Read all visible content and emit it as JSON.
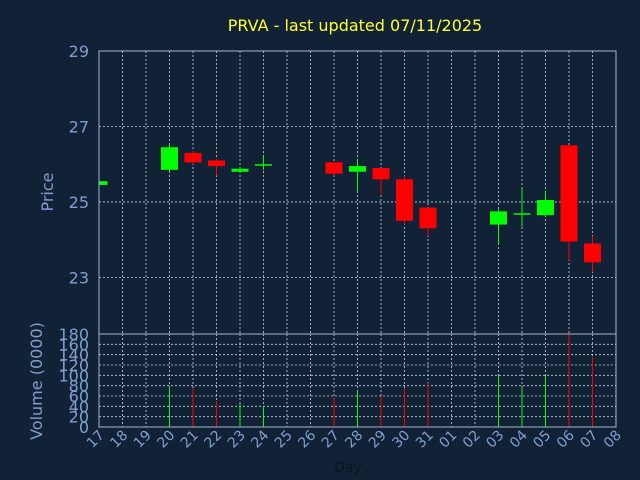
{
  "chart_data": {
    "type": "candlestick",
    "title": "PRVA - last updated 07/11/2025",
    "xlabel": "Day",
    "price_panel": {
      "ylabel": "Price",
      "ylim": [
        21.5,
        29
      ],
      "yticks": [
        23,
        25,
        27,
        29
      ]
    },
    "volume_panel": {
      "ylabel": "Volume (0000)",
      "ylim": [
        0,
        180
      ],
      "yticks": [
        0,
        20,
        40,
        60,
        80,
        100,
        120,
        140,
        160,
        180
      ]
    },
    "xticks": [
      "17",
      "18",
      "19",
      "20",
      "21",
      "22",
      "23",
      "24",
      "25",
      "26",
      "27",
      "28",
      "29",
      "30",
      "31",
      "01",
      "02",
      "03",
      "04",
      "05",
      "06",
      "07",
      "08"
    ],
    "colors": {
      "up": "#00ff00",
      "down": "#ff0000",
      "background": "#112236",
      "title": "#ffff33",
      "axis_text": "#7f9fcf"
    },
    "candles": [
      {
        "day": "17",
        "open": 25.45,
        "high": 25.55,
        "low": 25.45,
        "close": 25.55,
        "volume": 0
      },
      {
        "day": "20",
        "open": 25.85,
        "high": 26.55,
        "low": 25.8,
        "close": 26.45,
        "volume": 80
      },
      {
        "day": "21",
        "open": 26.3,
        "high": 26.35,
        "low": 26.0,
        "close": 26.05,
        "volume": 75
      },
      {
        "day": "22",
        "open": 26.1,
        "high": 26.15,
        "low": 25.7,
        "close": 25.95,
        "volume": 50
      },
      {
        "day": "23",
        "open": 25.8,
        "high": 25.92,
        "low": 25.78,
        "close": 25.88,
        "volume": 45
      },
      {
        "day": "24",
        "open": 26.0,
        "high": 26.25,
        "low": 25.85,
        "close": 26.0,
        "volume": 40
      },
      {
        "day": "27",
        "open": 26.05,
        "high": 26.05,
        "low": 25.7,
        "close": 25.75,
        "volume": 55
      },
      {
        "day": "28",
        "open": 25.8,
        "high": 26.15,
        "low": 25.3,
        "close": 25.95,
        "volume": 70
      },
      {
        "day": "29",
        "open": 25.9,
        "high": 25.9,
        "low": 25.2,
        "close": 25.6,
        "volume": 60
      },
      {
        "day": "30",
        "open": 25.6,
        "high": 25.7,
        "low": 24.4,
        "close": 24.5,
        "volume": 75
      },
      {
        "day": "31",
        "open": 24.85,
        "high": 24.85,
        "low": 24.1,
        "close": 24.3,
        "volume": 85
      },
      {
        "day": "03",
        "open": 24.4,
        "high": 24.8,
        "low": 23.9,
        "close": 24.75,
        "volume": 100
      },
      {
        "day": "04",
        "open": 24.7,
        "high": 25.35,
        "low": 24.35,
        "close": 24.7,
        "volume": 75
      },
      {
        "day": "05",
        "open": 24.65,
        "high": 25.3,
        "low": 24.6,
        "close": 25.05,
        "volume": 100
      },
      {
        "day": "06",
        "open": 26.5,
        "high": 26.5,
        "low": 23.45,
        "close": 23.95,
        "volume": 180
      },
      {
        "day": "07",
        "open": 23.9,
        "high": 24.1,
        "low": 23.15,
        "close": 23.4,
        "volume": 135
      }
    ]
  }
}
